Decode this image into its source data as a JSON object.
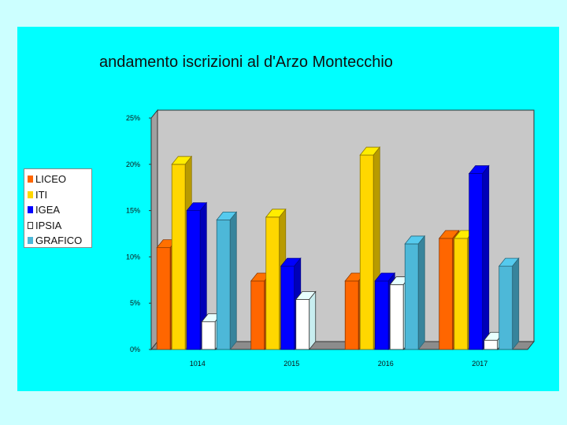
{
  "chart_data": {
    "type": "bar",
    "title": "andamento iscrizioni al d'Arzo Montecchio",
    "categories": [
      "1014",
      "2015",
      "2016",
      "2017"
    ],
    "series": [
      {
        "name": "LICEO",
        "values": [
          11,
          7.4,
          7.4,
          12
        ],
        "color": "#ff6600"
      },
      {
        "name": "ITI",
        "values": [
          20,
          14.3,
          21,
          12
        ],
        "color": "#ffd700"
      },
      {
        "name": "IGEA",
        "values": [
          15,
          9,
          7.4,
          19
        ],
        "color": "#0000ff"
      },
      {
        "name": "IPSIA",
        "values": [
          3,
          5.4,
          7,
          1
        ],
        "color": "#ffffff"
      },
      {
        "name": "GRAFICO",
        "values": [
          14,
          0,
          11.4,
          9
        ],
        "color": "#4db8d8"
      }
    ],
    "y_ticks": [
      "0%",
      "5%",
      "10%",
      "15%",
      "20%",
      "25%"
    ],
    "ylim": [
      0,
      25
    ],
    "legend_position": "left",
    "grid": false,
    "style": "3d-bar"
  }
}
